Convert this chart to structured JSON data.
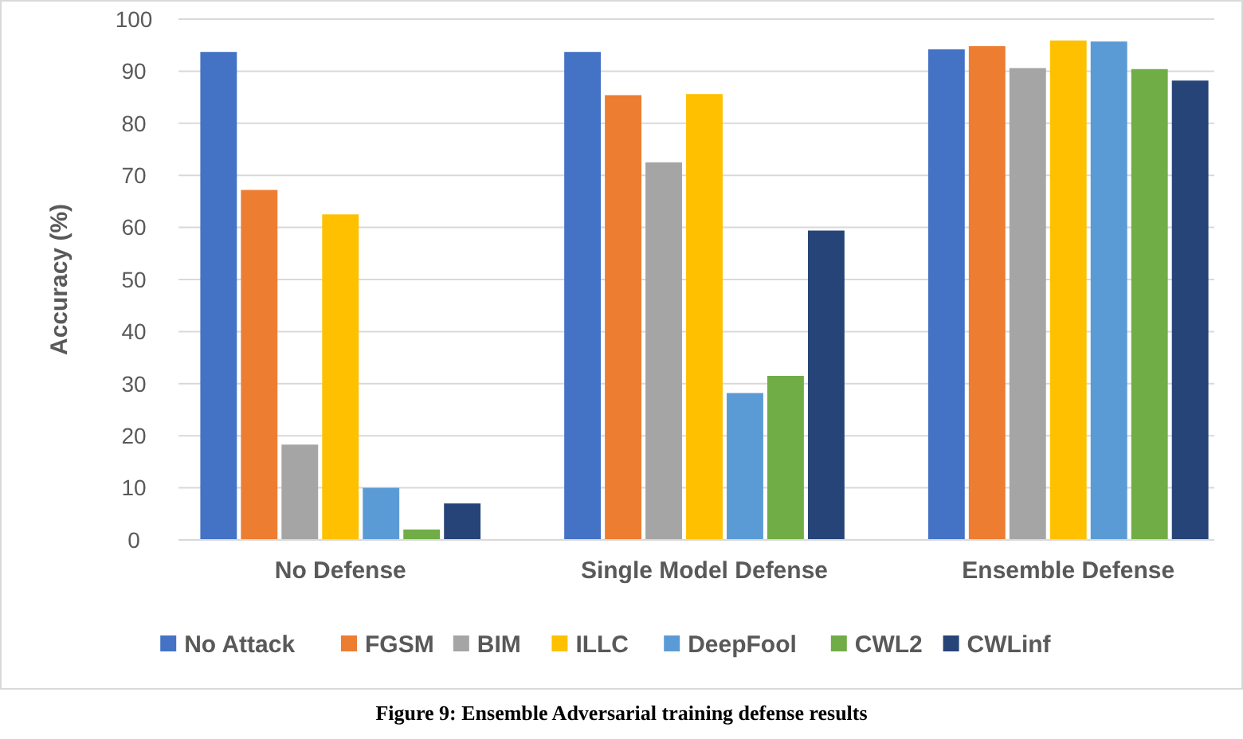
{
  "chart_data": {
    "type": "bar",
    "ylabel": "Accuracy (%)",
    "categories": [
      "No Defense",
      "Single Model Defense",
      "Ensemble Defense"
    ],
    "series": [
      {
        "name": "No Attack",
        "color": "#4472c4",
        "values": [
          93.7,
          93.7,
          94.2
        ]
      },
      {
        "name": "FGSM",
        "color": "#ed7d31",
        "values": [
          67.2,
          85.4,
          94.8
        ]
      },
      {
        "name": "BIM",
        "color": "#a5a5a5",
        "values": [
          18.3,
          72.5,
          90.6
        ]
      },
      {
        "name": "ILLC",
        "color": "#ffc000",
        "values": [
          62.5,
          85.6,
          95.9
        ]
      },
      {
        "name": "DeepFool",
        "color": "#5b9bd5",
        "values": [
          10,
          28.2,
          95.7
        ]
      },
      {
        "name": "CWL2",
        "color": "#70ad47",
        "values": [
          2,
          31.5,
          90.4
        ]
      },
      {
        "name": "CWLinf",
        "color": "#264478",
        "values": [
          7,
          59.4,
          88.2
        ]
      }
    ],
    "ylim": [
      0,
      100
    ],
    "yticks": [
      0,
      10,
      20,
      30,
      40,
      50,
      60,
      70,
      80,
      90,
      100
    ],
    "grid": "y",
    "legend": "bottom",
    "annotations": [
      "Figure 9: Ensemble Adversarial training defense results"
    ]
  }
}
